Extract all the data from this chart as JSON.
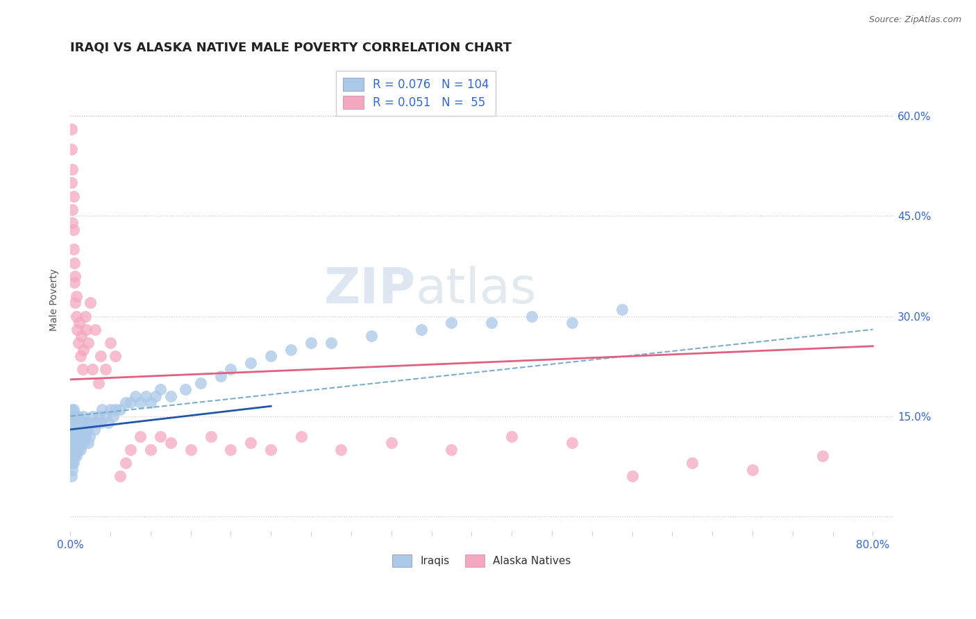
{
  "title": "IRAQI VS ALASKA NATIVE MALE POVERTY CORRELATION CHART",
  "source": "Source: ZipAtlas.com",
  "ylabel": "Male Poverty",
  "xlim": [
    0.0,
    0.82
  ],
  "ylim": [
    -0.03,
    0.68
  ],
  "iraqi_R": 0.076,
  "iraqi_N": 104,
  "alaska_R": 0.051,
  "alaska_N": 55,
  "iraqi_color": "#aac8e8",
  "alaska_color": "#f4a8c0",
  "iraqi_line_color": "#2255aa",
  "alaska_line_color": "#e06080",
  "dashed_line_color": "#7aaccc",
  "background_color": "#ffffff",
  "grid_color": "#c8c8c8",
  "watermark_zip": "ZIP",
  "watermark_atlas": "atlas",
  "title_fontsize": 13,
  "axis_label_fontsize": 10,
  "tick_fontsize": 11,
  "legend_fontsize": 12,
  "tick_color": "#3366cc",
  "iraqi_scatter_x": [
    0.001,
    0.001,
    0.001,
    0.001,
    0.001,
    0.002,
    0.002,
    0.002,
    0.002,
    0.002,
    0.002,
    0.002,
    0.002,
    0.002,
    0.002,
    0.002,
    0.002,
    0.003,
    0.003,
    0.003,
    0.003,
    0.003,
    0.003,
    0.003,
    0.003,
    0.003,
    0.003,
    0.004,
    0.004,
    0.004,
    0.004,
    0.004,
    0.004,
    0.005,
    0.005,
    0.005,
    0.005,
    0.005,
    0.005,
    0.006,
    0.006,
    0.006,
    0.006,
    0.007,
    0.007,
    0.007,
    0.008,
    0.008,
    0.008,
    0.009,
    0.009,
    0.01,
    0.01,
    0.01,
    0.011,
    0.011,
    0.012,
    0.012,
    0.013,
    0.014,
    0.014,
    0.015,
    0.016,
    0.017,
    0.018,
    0.019,
    0.02,
    0.022,
    0.024,
    0.026,
    0.028,
    0.03,
    0.032,
    0.035,
    0.038,
    0.04,
    0.043,
    0.045,
    0.05,
    0.055,
    0.06,
    0.065,
    0.07,
    0.075,
    0.08,
    0.085,
    0.09,
    0.1,
    0.115,
    0.13,
    0.15,
    0.16,
    0.18,
    0.2,
    0.22,
    0.24,
    0.26,
    0.3,
    0.35,
    0.38,
    0.42,
    0.46,
    0.5,
    0.55
  ],
  "iraqi_scatter_y": [
    0.12,
    0.1,
    0.08,
    0.14,
    0.06,
    0.15,
    0.13,
    0.11,
    0.09,
    0.16,
    0.07,
    0.12,
    0.1,
    0.14,
    0.08,
    0.11,
    0.13,
    0.15,
    0.12,
    0.1,
    0.09,
    0.13,
    0.11,
    0.14,
    0.08,
    0.16,
    0.12,
    0.13,
    0.11,
    0.1,
    0.14,
    0.12,
    0.09,
    0.15,
    0.11,
    0.13,
    0.1,
    0.12,
    0.14,
    0.11,
    0.13,
    0.15,
    0.09,
    0.12,
    0.14,
    0.11,
    0.13,
    0.1,
    0.15,
    0.12,
    0.11,
    0.14,
    0.12,
    0.1,
    0.13,
    0.11,
    0.14,
    0.12,
    0.15,
    0.13,
    0.11,
    0.12,
    0.14,
    0.13,
    0.11,
    0.12,
    0.14,
    0.15,
    0.13,
    0.14,
    0.15,
    0.14,
    0.16,
    0.15,
    0.14,
    0.16,
    0.15,
    0.16,
    0.16,
    0.17,
    0.17,
    0.18,
    0.17,
    0.18,
    0.17,
    0.18,
    0.19,
    0.18,
    0.19,
    0.2,
    0.21,
    0.22,
    0.23,
    0.24,
    0.25,
    0.26,
    0.26,
    0.27,
    0.28,
    0.29,
    0.29,
    0.3,
    0.29,
    0.31
  ],
  "alaska_scatter_x": [
    0.001,
    0.001,
    0.001,
    0.002,
    0.002,
    0.002,
    0.003,
    0.003,
    0.003,
    0.004,
    0.004,
    0.005,
    0.005,
    0.006,
    0.006,
    0.007,
    0.008,
    0.009,
    0.01,
    0.011,
    0.012,
    0.013,
    0.015,
    0.016,
    0.018,
    0.02,
    0.022,
    0.025,
    0.028,
    0.03,
    0.035,
    0.04,
    0.045,
    0.05,
    0.055,
    0.06,
    0.07,
    0.08,
    0.09,
    0.1,
    0.12,
    0.14,
    0.16,
    0.18,
    0.2,
    0.23,
    0.27,
    0.32,
    0.38,
    0.44,
    0.5,
    0.56,
    0.62,
    0.68,
    0.75
  ],
  "alaska_scatter_y": [
    0.5,
    0.55,
    0.58,
    0.46,
    0.52,
    0.44,
    0.48,
    0.4,
    0.43,
    0.35,
    0.38,
    0.32,
    0.36,
    0.3,
    0.33,
    0.28,
    0.26,
    0.29,
    0.24,
    0.27,
    0.22,
    0.25,
    0.3,
    0.28,
    0.26,
    0.32,
    0.22,
    0.28,
    0.2,
    0.24,
    0.22,
    0.26,
    0.24,
    0.06,
    0.08,
    0.1,
    0.12,
    0.1,
    0.12,
    0.11,
    0.1,
    0.12,
    0.1,
    0.11,
    0.1,
    0.12,
    0.1,
    0.11,
    0.1,
    0.12,
    0.11,
    0.06,
    0.08,
    0.07,
    0.09
  ]
}
